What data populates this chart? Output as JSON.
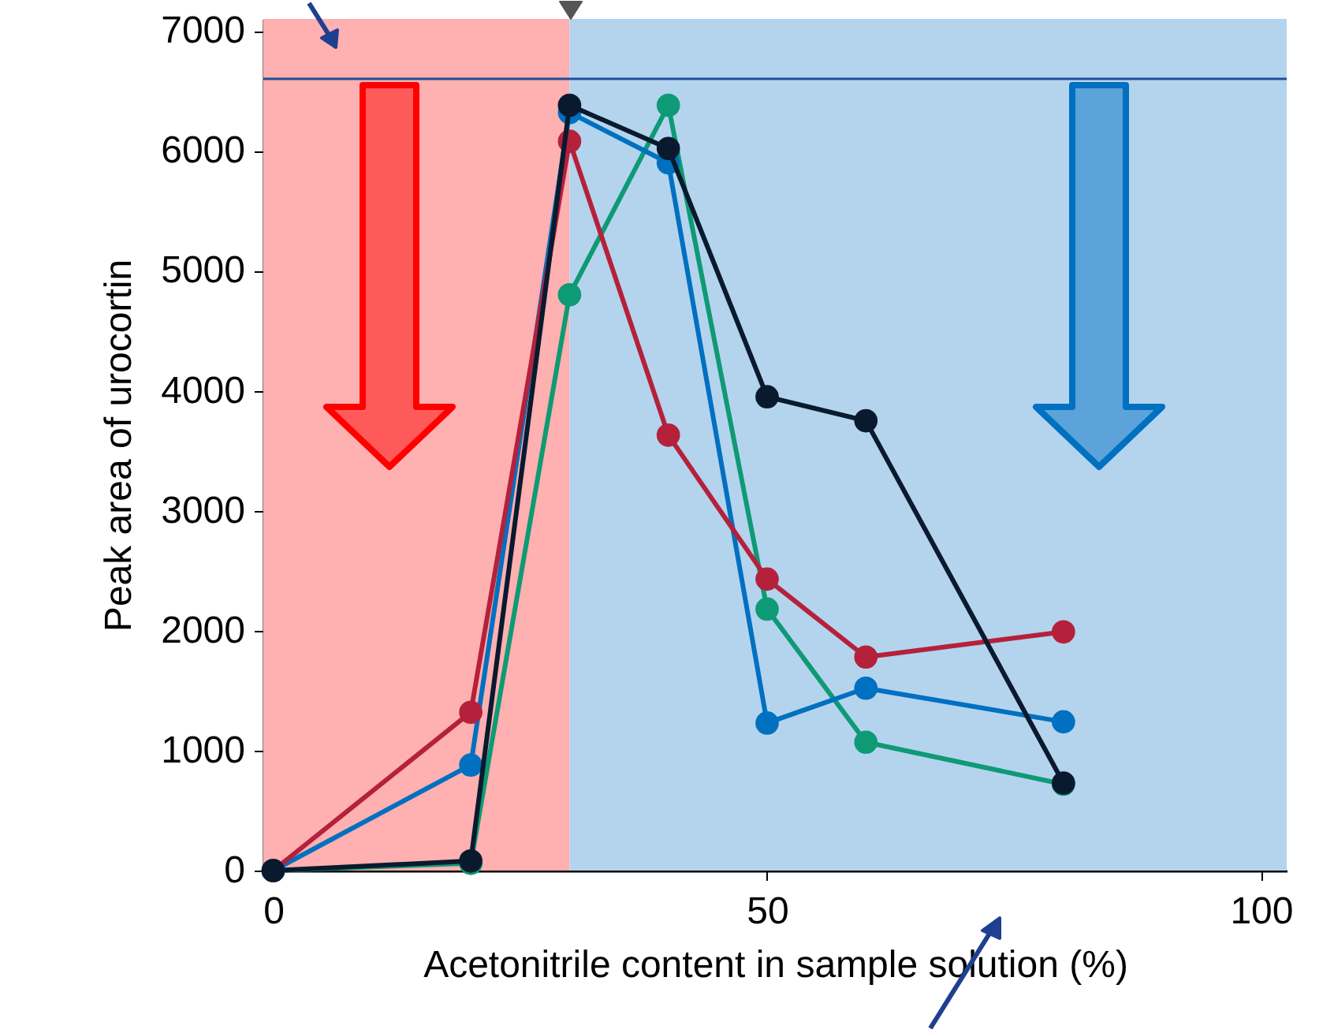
{
  "chart_data": {
    "type": "line",
    "xlabel": "Acetonitrile content in sample solution (%)",
    "ylabel": "Peak area of urocortin",
    "x": [
      0,
      20,
      30,
      40,
      50,
      60,
      80
    ],
    "series": [
      {
        "color": "#0a1a2e",
        "values": [
          0,
          80,
          6380,
          6020,
          3950,
          3750,
          730
        ]
      },
      {
        "color": "#b5213b",
        "values": [
          0,
          1320,
          6080,
          3630,
          2430,
          1780,
          1990
        ]
      },
      {
        "color": "#0070c0",
        "values": [
          0,
          880,
          6320,
          5900,
          1230,
          1520,
          1240
        ]
      },
      {
        "color": "#0e9a74",
        "values": [
          0,
          60,
          4800,
          6380,
          2180,
          1070,
          720
        ]
      }
    ],
    "xlim": [
      -1,
      102.6
    ],
    "ylim": [
      0,
      7100
    ],
    "xticks": [
      0,
      50,
      100
    ],
    "yticks": [
      0,
      1000,
      2000,
      3000,
      4000,
      5000,
      6000,
      7000
    ],
    "bands": [
      {
        "axis": "x",
        "from": -1,
        "to": 30,
        "color": "#ffb0b0"
      },
      {
        "axis": "x",
        "from": 30,
        "to": 102.6,
        "color": "#b4d4ee"
      }
    ],
    "ref_lines": [
      {
        "axis": "y",
        "value": 6600,
        "color": "#1f4e9a",
        "line_style": "solid"
      }
    ],
    "marker": "circle",
    "line_style": "solid",
    "grid": false
  }
}
